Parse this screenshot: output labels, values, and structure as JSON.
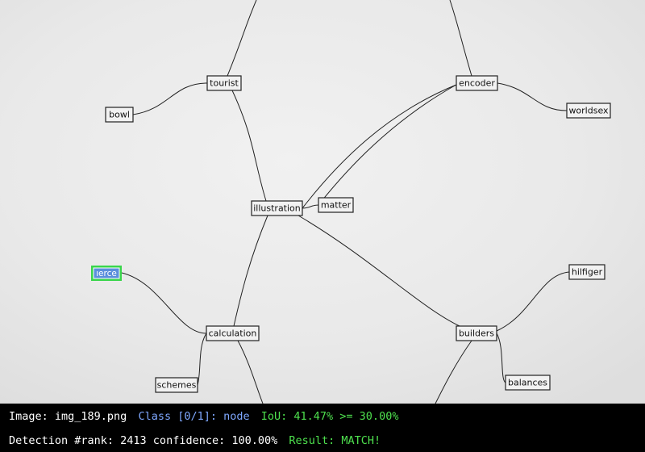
{
  "nodes": [
    {
      "label": "tourist"
    },
    {
      "label": "encoder"
    },
    {
      "label": "bowl"
    },
    {
      "label": "worldsex"
    },
    {
      "label": "illustration"
    },
    {
      "label": "matter"
    },
    {
      "label": "ıerce"
    },
    {
      "label": "hilfiger"
    },
    {
      "label": "calculation"
    },
    {
      "label": "builders"
    },
    {
      "label": "schemes"
    },
    {
      "label": "balances"
    }
  ],
  "status": {
    "image": "Image: img_189.png",
    "class": "Class [0/1]: node",
    "iou": "IoU: 41.47% >= 30.00%",
    "detection": "Detection #rank: 2413 confidence: 100.00%",
    "result": "Result: MATCH!"
  }
}
